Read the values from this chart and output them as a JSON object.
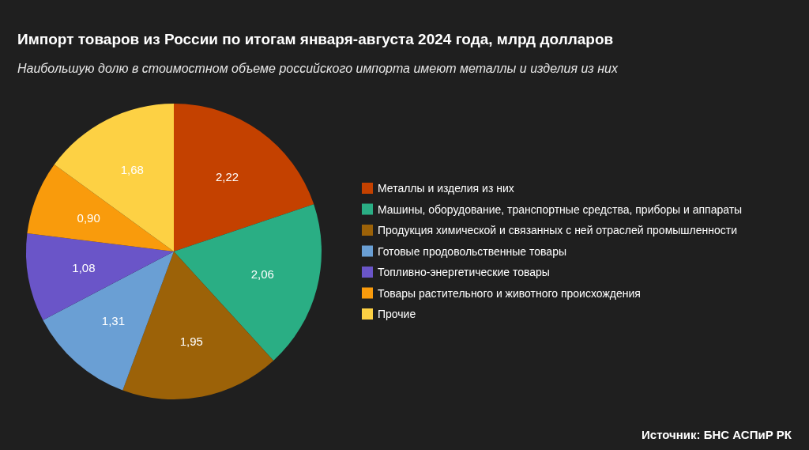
{
  "chart_data": {
    "type": "pie",
    "title": "Импорт товаров из России по итогам января-августа 2024 года, млрд долларов",
    "subtitle": "Наибольшую долю в стоимостном объеме российского импорта имеют металлы и изделия из них",
    "annotations": [
      "Источник: БНС АСПиР РК"
    ],
    "categories": [
      "Металлы и изделия из них",
      "Машины, оборудование, транспортные средства, приборы и аппараты",
      "Продукция химической и связанных с ней отраслей промышленности",
      "Готовые продовольственные товары",
      "Топливно-энергетические товары",
      "Товары растительного и животного происхождения",
      "Прочие"
    ],
    "values": [
      2.22,
      2.06,
      1.95,
      1.31,
      1.08,
      0.9,
      1.68
    ],
    "colors": [
      "#c44100",
      "#2aae84",
      "#9c6208",
      "#6a9fd4",
      "#6a55c8",
      "#f99b0c",
      "#fdd144"
    ],
    "value_labels": [
      "2,22",
      "2,06",
      "1,95",
      "1,31",
      "1,08",
      "0,90",
      "1,68"
    ],
    "legend": "right"
  }
}
